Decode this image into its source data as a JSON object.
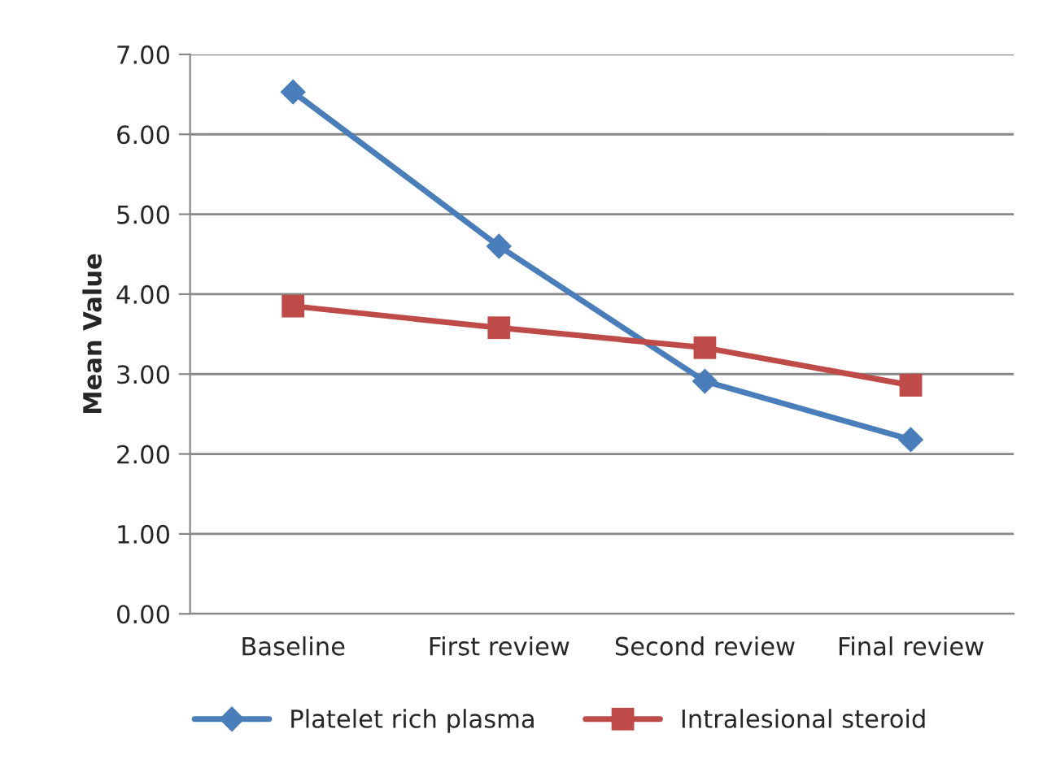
{
  "chart_data": {
    "type": "line",
    "ylabel": "Mean Value",
    "categories": [
      "Baseline",
      "First review",
      "Second review",
      "Final review"
    ],
    "series": [
      {
        "name": "Platelet rich plasma",
        "color": "#4a7ebb",
        "marker": "diamond",
        "values": [
          6.53,
          4.6,
          2.91,
          2.18
        ]
      },
      {
        "name": "Intralesional steroid",
        "color": "#be4b48",
        "marker": "square",
        "values": [
          3.85,
          3.58,
          3.33,
          2.86
        ]
      }
    ],
    "ylim": [
      0,
      7
    ],
    "yticks": [
      {
        "value": 0,
        "label": "0.00"
      },
      {
        "value": 1,
        "label": "1.00"
      },
      {
        "value": 2,
        "label": "2.00"
      },
      {
        "value": 3,
        "label": "3.00"
      },
      {
        "value": 4,
        "label": "4.00"
      },
      {
        "value": 5,
        "label": "5.00"
      },
      {
        "value": 6,
        "label": "6.00"
      },
      {
        "value": 7,
        "label": "7.00"
      }
    ],
    "grid": "y",
    "legend": "bottom",
    "line_style": "solid"
  }
}
